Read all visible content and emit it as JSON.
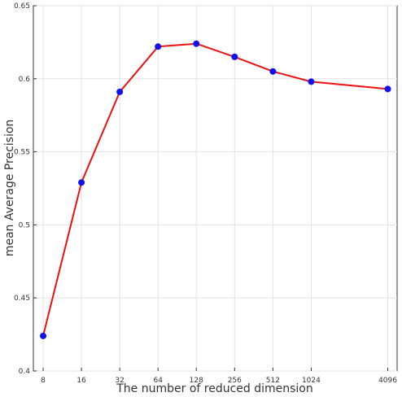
{
  "chart_data": {
    "type": "line",
    "title": "",
    "xlabel": "The number of reduced dimension",
    "ylabel": "mean Average Precision",
    "x_scale": "log2",
    "x": [
      8,
      16,
      32,
      64,
      128,
      256,
      512,
      1024,
      4096
    ],
    "x_tick_labels": [
      "8",
      "16",
      "32",
      "64",
      "128",
      "256",
      "512",
      "1024",
      "4096"
    ],
    "ylim": [
      0.4,
      0.65
    ],
    "y_ticks": [
      0.4,
      0.45,
      0.5,
      0.55,
      0.6,
      0.65
    ],
    "y_tick_labels": [
      "0.4",
      "0.45",
      "0.5",
      "0.55",
      "0.6",
      "0.65"
    ],
    "grid": true,
    "series": [
      {
        "values": [
          0.424,
          0.529,
          0.591,
          0.622,
          0.624,
          0.615,
          0.605,
          0.598,
          0.593
        ],
        "line_color": "#ee1111",
        "marker_color": "#1010ee"
      }
    ]
  }
}
